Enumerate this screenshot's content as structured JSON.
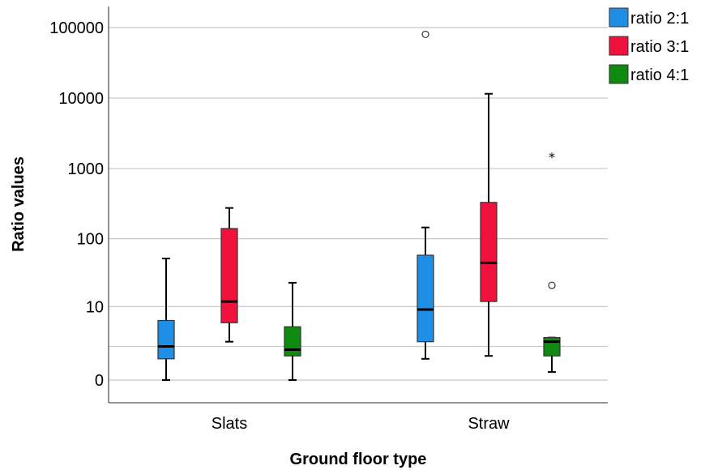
{
  "chart_data": {
    "type": "boxplot",
    "title": "",
    "xlabel": "Ground floor type",
    "ylabel": "Ratio values",
    "y_ticks": [
      {
        "value": 0,
        "label": "0"
      },
      {
        "value": 10,
        "label": "10"
      },
      {
        "value": 100,
        "label": "100"
      },
      {
        "value": 1000,
        "label": "1000"
      },
      {
        "value": 10000,
        "label": "10000"
      },
      {
        "value": 100000,
        "label": "100000"
      }
    ],
    "y_scale": "log",
    "categories": [
      "Slats",
      "Straw"
    ],
    "legend_position": "top-right",
    "series": [
      {
        "name": "ratio 2:1",
        "color": "#1f8fe6",
        "boxes": [
          {
            "min": 0,
            "q1": 1,
            "median": 2,
            "q3": 6,
            "max": 52,
            "outliers": [],
            "extremes": []
          },
          {
            "min": 1,
            "q1": 2.5,
            "median": 9,
            "q3": 58,
            "max": 145,
            "outliers": [
              80000
            ],
            "extremes": []
          }
        ]
      },
      {
        "name": "ratio 3:1",
        "color": "#f0123c",
        "boxes": [
          {
            "min": 2.5,
            "q1": 5.5,
            "median": 12,
            "q3": 140,
            "max": 275,
            "outliers": [],
            "extremes": []
          },
          {
            "min": 1.2,
            "q1": 12,
            "median": 45,
            "q3": 330,
            "max": 11500,
            "outliers": [],
            "extremes": []
          }
        ]
      },
      {
        "name": "ratio 4:1",
        "color": "#0e8a0e",
        "boxes": [
          {
            "min": 0,
            "q1": 1.2,
            "median": 1.7,
            "q3": 4.7,
            "max": 23,
            "outliers": [],
            "extremes": []
          },
          {
            "min": 0.3,
            "q1": 1.2,
            "median": 2.5,
            "q3": 3,
            "max": 3,
            "outliers": [
              21
            ],
            "extremes": [
              1500
            ]
          }
        ]
      }
    ]
  }
}
